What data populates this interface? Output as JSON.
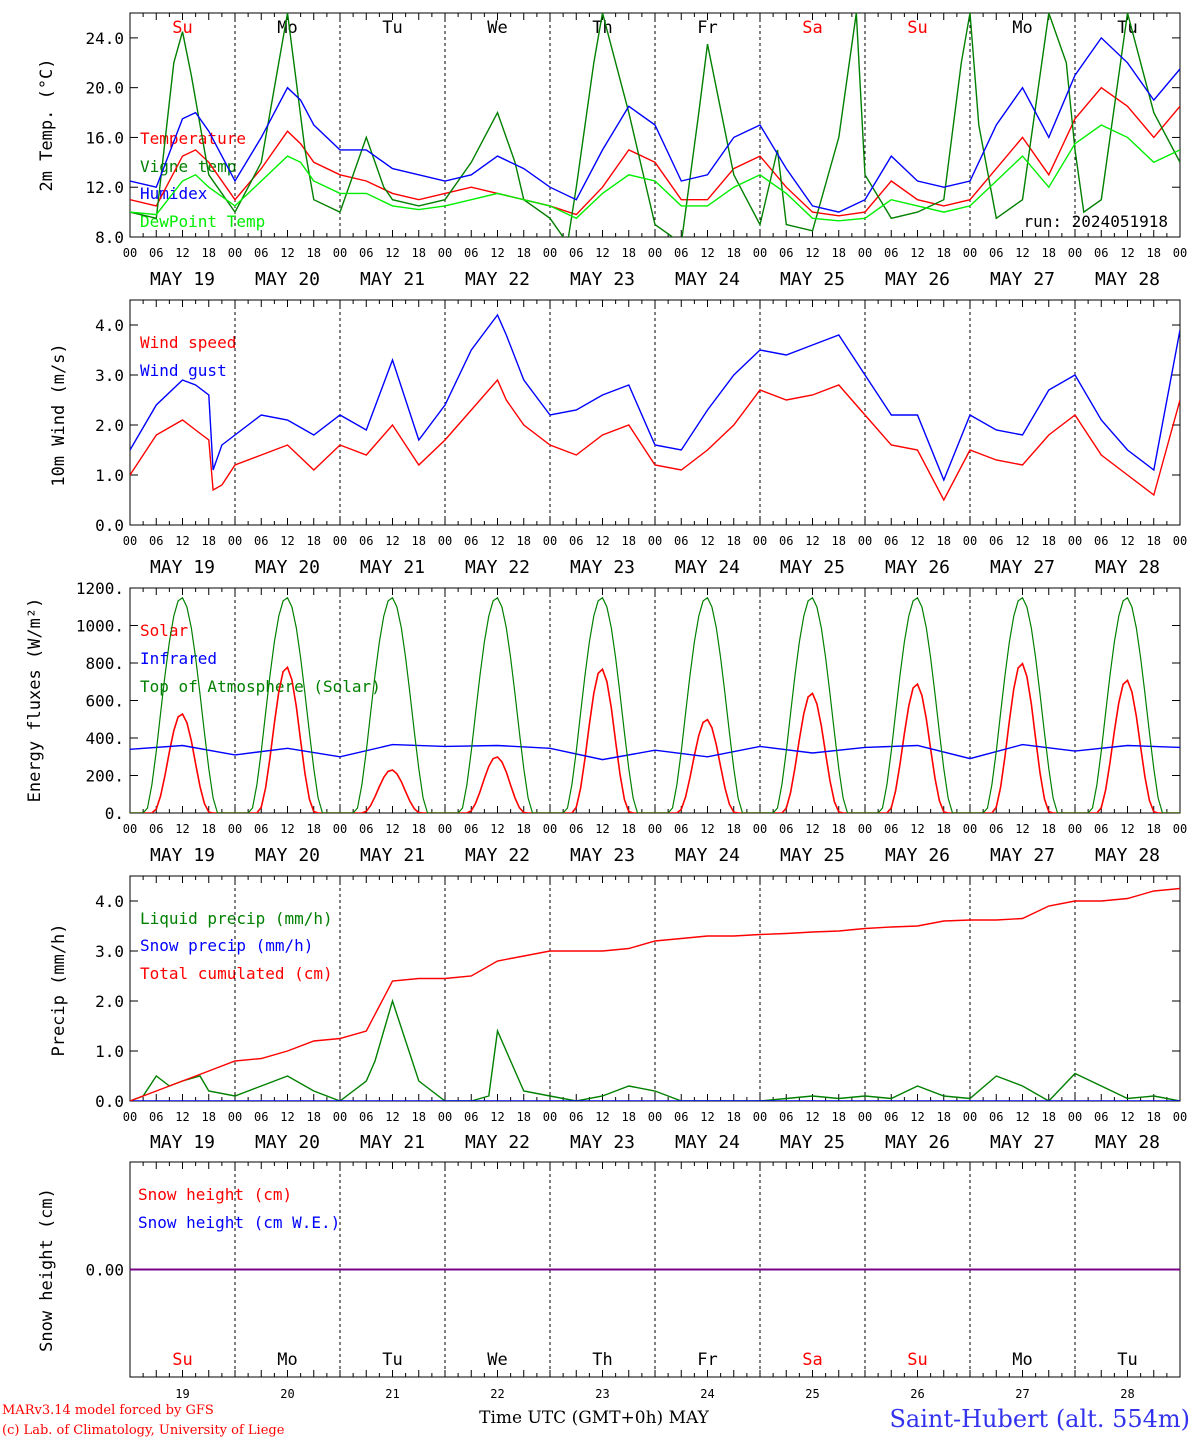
{
  "chart_data": [
    {
      "type": "line",
      "ylabel": "2m Temp. (°C)",
      "ylim": [
        8,
        26
      ],
      "yticks": [
        8,
        12,
        16,
        20,
        24
      ],
      "ytick_labels": [
        "8.0",
        "12.0",
        "16.0",
        "20.0",
        "24.0"
      ],
      "run": "run: 2024051918",
      "day_names": [
        "Su",
        "Mo",
        "Tu",
        "We",
        "Th",
        "Fr",
        "Sa",
        "Su",
        "Mo",
        "Tu"
      ],
      "weekend_flags": [
        true,
        false,
        false,
        false,
        false,
        false,
        true,
        true,
        false,
        false
      ],
      "series": [
        {
          "name": "Temperature",
          "color": "#ff0000",
          "x": [
            0,
            6,
            12,
            15,
            18,
            24,
            30,
            36,
            39,
            42,
            48,
            54,
            60,
            66,
            72,
            78,
            84,
            90,
            96,
            102,
            108,
            114,
            120,
            126,
            132,
            138,
            144,
            150,
            156,
            162,
            168,
            174,
            180,
            186,
            192,
            198,
            204,
            210,
            216,
            222,
            228,
            234,
            240
          ],
          "y": [
            11,
            10.5,
            14.5,
            15,
            14,
            11,
            13.5,
            16.5,
            15.5,
            14,
            13,
            12.5,
            11.5,
            11,
            11.5,
            12,
            11.5,
            11,
            10.5,
            9.8,
            12,
            15,
            14,
            11,
            11,
            13.5,
            14.5,
            12,
            10,
            9.7,
            10,
            12.5,
            11,
            10.5,
            11,
            13.5,
            16,
            13,
            17.5,
            20,
            18.5,
            16,
            18.5
          ]
        },
        {
          "name": "Vigne temp",
          "color": "#008000",
          "x": [
            0,
            6,
            10,
            12,
            14,
            18,
            24,
            30,
            36,
            40,
            42,
            48,
            54,
            58,
            60,
            66,
            72,
            78,
            84,
            88,
            90,
            96,
            100,
            102,
            106,
            108,
            114,
            120,
            126,
            130,
            132,
            138,
            144,
            148,
            150,
            156,
            162,
            166,
            168,
            174,
            180,
            186,
            190,
            192,
            194,
            198,
            204,
            210,
            214,
            216,
            218,
            222,
            228,
            234,
            240
          ],
          "y": [
            10,
            9.5,
            22,
            24.5,
            21,
            13,
            10,
            14,
            26,
            15,
            11,
            10,
            16,
            12,
            11,
            10.5,
            11,
            14,
            18,
            14,
            11,
            9.5,
            7.5,
            12,
            22,
            26,
            18,
            9,
            7.5,
            18,
            23.5,
            13,
            9,
            15,
            9,
            8.5,
            16,
            26,
            13,
            9.5,
            10,
            11,
            22,
            26,
            17,
            9.5,
            11,
            26,
            22,
            15,
            10,
            11,
            26,
            18,
            14
          ]
        },
        {
          "name": "Humidex",
          "color": "#0000ff",
          "x": [
            0,
            6,
            12,
            15,
            18,
            24,
            30,
            36,
            39,
            42,
            48,
            54,
            60,
            66,
            72,
            78,
            84,
            90,
            96,
            102,
            108,
            114,
            120,
            126,
            132,
            138,
            144,
            150,
            156,
            162,
            168,
            174,
            180,
            186,
            192,
            198,
            204,
            210,
            216,
            222,
            228,
            234,
            240
          ],
          "y": [
            12.5,
            12,
            17.5,
            18,
            16.5,
            12.5,
            16,
            20,
            19,
            17,
            15,
            15,
            13.5,
            13,
            12.5,
            13,
            14.5,
            13.5,
            12,
            11,
            15,
            18.5,
            17,
            12.5,
            13,
            16,
            17,
            13.5,
            10.5,
            10,
            11,
            14.5,
            12.5,
            12,
            12.5,
            17,
            20,
            16,
            21,
            24,
            22,
            19,
            21.5
          ]
        },
        {
          "name": "DewPoint Temp",
          "color": "#00ee00",
          "x": [
            0,
            6,
            12,
            15,
            18,
            24,
            30,
            36,
            39,
            42,
            48,
            54,
            60,
            66,
            72,
            78,
            84,
            90,
            96,
            102,
            108,
            114,
            120,
            126,
            132,
            138,
            144,
            150,
            156,
            162,
            168,
            174,
            180,
            186,
            192,
            198,
            204,
            210,
            216,
            222,
            228,
            234,
            240
          ],
          "y": [
            10,
            9.8,
            12.5,
            13,
            12,
            10.5,
            12.5,
            14.5,
            14,
            12.5,
            11.5,
            11.5,
            10.5,
            10.2,
            10.5,
            11,
            11.5,
            11,
            10.5,
            9.5,
            11.5,
            13,
            12.5,
            10.5,
            10.5,
            12,
            13,
            11.5,
            9.5,
            9.3,
            9.5,
            11,
            10.5,
            10,
            10.5,
            12.5,
            14.5,
            12,
            15.5,
            17,
            16,
            14,
            15
          ]
        }
      ]
    },
    {
      "type": "line",
      "ylabel": "10m Wind (m/s)",
      "ylim": [
        0,
        4.5
      ],
      "yticks": [
        0,
        1,
        2,
        3,
        4
      ],
      "ytick_labels": [
        "0.0",
        "1.0",
        "2.0",
        "3.0",
        "4.0"
      ],
      "series": [
        {
          "name": "Wind speed",
          "color": "#ff0000",
          "x": [
            0,
            6,
            12,
            15,
            18,
            19,
            21,
            24,
            30,
            36,
            42,
            48,
            54,
            60,
            66,
            72,
            78,
            84,
            86,
            90,
            96,
            102,
            108,
            114,
            120,
            126,
            132,
            138,
            144,
            150,
            156,
            162,
            168,
            174,
            180,
            186,
            192,
            198,
            204,
            210,
            216,
            222,
            228,
            234,
            240
          ],
          "y": [
            1,
            1.8,
            2.1,
            1.9,
            1.7,
            0.7,
            0.8,
            1.2,
            1.4,
            1.6,
            1.1,
            1.6,
            1.4,
            2,
            1.2,
            1.7,
            2.3,
            2.9,
            2.5,
            2,
            1.6,
            1.4,
            1.8,
            2,
            1.2,
            1.1,
            1.5,
            2,
            2.7,
            2.5,
            2.6,
            2.8,
            2.2,
            1.6,
            1.5,
            0.5,
            1.5,
            1.3,
            1.2,
            1.8,
            2.2,
            1.4,
            1,
            0.6,
            2.5
          ]
        },
        {
          "name": "Wind gust",
          "color": "#0000ff",
          "x": [
            0,
            6,
            12,
            15,
            18,
            19,
            21,
            24,
            30,
            36,
            42,
            48,
            54,
            60,
            66,
            72,
            78,
            84,
            86,
            90,
            96,
            102,
            108,
            114,
            120,
            126,
            132,
            138,
            144,
            150,
            156,
            162,
            168,
            174,
            180,
            186,
            192,
            198,
            204,
            210,
            216,
            222,
            228,
            234,
            240
          ],
          "y": [
            1.5,
            2.4,
            2.9,
            2.8,
            2.6,
            1.1,
            1.6,
            1.8,
            2.2,
            2.1,
            1.8,
            2.2,
            1.9,
            3.3,
            1.7,
            2.4,
            3.5,
            4.2,
            3.8,
            2.9,
            2.2,
            2.3,
            2.6,
            2.8,
            1.6,
            1.5,
            2.3,
            3,
            3.5,
            3.4,
            3.6,
            3.8,
            3,
            2.2,
            2.2,
            0.9,
            2.2,
            1.9,
            1.8,
            2.7,
            3,
            2.1,
            1.5,
            1.1,
            3.9
          ]
        }
      ]
    },
    {
      "type": "line",
      "ylabel": "Energy fluxes (W/m²)",
      "ylim": [
        0,
        1200
      ],
      "yticks": [
        0,
        200,
        400,
        600,
        800,
        1000,
        1200
      ],
      "ytick_labels": [
        "0.",
        "200.",
        "400.",
        "600.",
        "800.",
        "1000.",
        "1200."
      ],
      "series": [
        {
          "name": "Solar",
          "color": "#ff0000",
          "daily_peaks": [
            530,
            780,
            230,
            300,
            770,
            500,
            640,
            690,
            800,
            710
          ]
        },
        {
          "name": "Infrared",
          "color": "#0000ff",
          "x": [
            0,
            12,
            24,
            36,
            48,
            60,
            72,
            84,
            96,
            108,
            120,
            132,
            144,
            156,
            168,
            180,
            192,
            204,
            216,
            228,
            240
          ],
          "y": [
            340,
            360,
            310,
            345,
            300,
            365,
            355,
            360,
            345,
            285,
            335,
            300,
            355,
            320,
            350,
            360,
            290,
            365,
            330,
            360,
            350
          ]
        },
        {
          "name": "Top of Atmosphere (Solar)",
          "color": "#008000",
          "daily_peak": 1150
        }
      ]
    },
    {
      "type": "line",
      "ylabel": "Precip (mm/h)",
      "ylim": [
        0,
        4.5
      ],
      "yticks": [
        0,
        1,
        2,
        3,
        4
      ],
      "ytick_labels": [
        "0.0",
        "1.0",
        "2.0",
        "3.0",
        "4.0"
      ],
      "series": [
        {
          "name": "Liquid precip (mm/h)",
          "color": "#008000",
          "x": [
            0,
            3,
            6,
            9,
            12,
            16,
            18,
            24,
            30,
            36,
            42,
            48,
            54,
            56,
            60,
            66,
            72,
            78,
            82,
            84,
            88,
            90,
            96,
            102,
            108,
            114,
            120,
            126,
            132,
            144,
            150,
            156,
            162,
            168,
            174,
            180,
            186,
            192,
            198,
            204,
            210,
            216,
            222,
            228,
            234,
            240
          ],
          "y": [
            0,
            0.1,
            0.5,
            0.3,
            0.4,
            0.5,
            0.2,
            0.1,
            0.3,
            0.5,
            0.2,
            0,
            0.4,
            0.8,
            2,
            0.4,
            0,
            0,
            0.1,
            1.4,
            0.6,
            0.2,
            0.1,
            0,
            0.1,
            0.3,
            0.2,
            0,
            0,
            0,
            0.05,
            0.1,
            0.05,
            0.1,
            0.05,
            0.3,
            0.1,
            0.05,
            0.5,
            0.3,
            0,
            0.55,
            0.3,
            0.05,
            0.1,
            0
          ]
        },
        {
          "name": "Snow precip (mm/h)",
          "color": "#0000ff",
          "x": [
            0,
            240
          ],
          "y": [
            0,
            0
          ]
        },
        {
          "name": "Total cumulated (cm)",
          "color": "#ff0000",
          "x": [
            0,
            6,
            12,
            18,
            24,
            30,
            36,
            42,
            48,
            54,
            57,
            60,
            66,
            72,
            78,
            84,
            90,
            96,
            102,
            108,
            114,
            120,
            126,
            132,
            138,
            144,
            150,
            156,
            162,
            168,
            174,
            180,
            186,
            192,
            198,
            204,
            210,
            216,
            222,
            228,
            234,
            240
          ],
          "y": [
            0,
            0.2,
            0.4,
            0.6,
            0.8,
            0.85,
            1,
            1.2,
            1.25,
            1.4,
            1.9,
            2.4,
            2.45,
            2.45,
            2.5,
            2.8,
            2.9,
            3,
            3,
            3,
            3.05,
            3.2,
            3.25,
            3.3,
            3.3,
            3.33,
            3.35,
            3.38,
            3.4,
            3.45,
            3.48,
            3.5,
            3.6,
            3.62,
            3.62,
            3.65,
            3.9,
            4,
            4,
            4.05,
            4.2,
            4.25
          ]
        }
      ]
    },
    {
      "type": "line",
      "ylabel": "Snow height (cm)",
      "ylim": [
        -1,
        1
      ],
      "yticks": [
        0
      ],
      "ytick_labels": [
        "0.00"
      ],
      "series": [
        {
          "name": "Snow height (cm)",
          "color": "#ff0000",
          "x": [
            0,
            240
          ],
          "y": [
            0,
            0
          ]
        },
        {
          "name": "Snow height (cm W.E.)",
          "color": "#0000ff",
          "x": [
            0,
            240
          ],
          "y": [
            0,
            0
          ]
        }
      ],
      "day_numbers": [
        "19",
        "20",
        "21",
        "22",
        "23",
        "24",
        "25",
        "26",
        "27",
        "28"
      ]
    }
  ],
  "x_axis": {
    "hour_labels": [
      "00",
      "06",
      "12",
      "18"
    ],
    "end_label": "00",
    "date_labels": [
      "MAY 19",
      "MAY 20",
      "MAY 21",
      "MAY 22",
      "MAY 23",
      "MAY 24",
      "MAY 25",
      "MAY 26",
      "MAY 27",
      "MAY 28"
    ],
    "title": "Time UTC (GMT+0h) MAY"
  },
  "footer": {
    "model": "MARv3.14 model forced by GFS",
    "credit": "(c) Lab. of Climatology, University of Liege",
    "station": "Saint-Hubert (alt. 554m)"
  }
}
